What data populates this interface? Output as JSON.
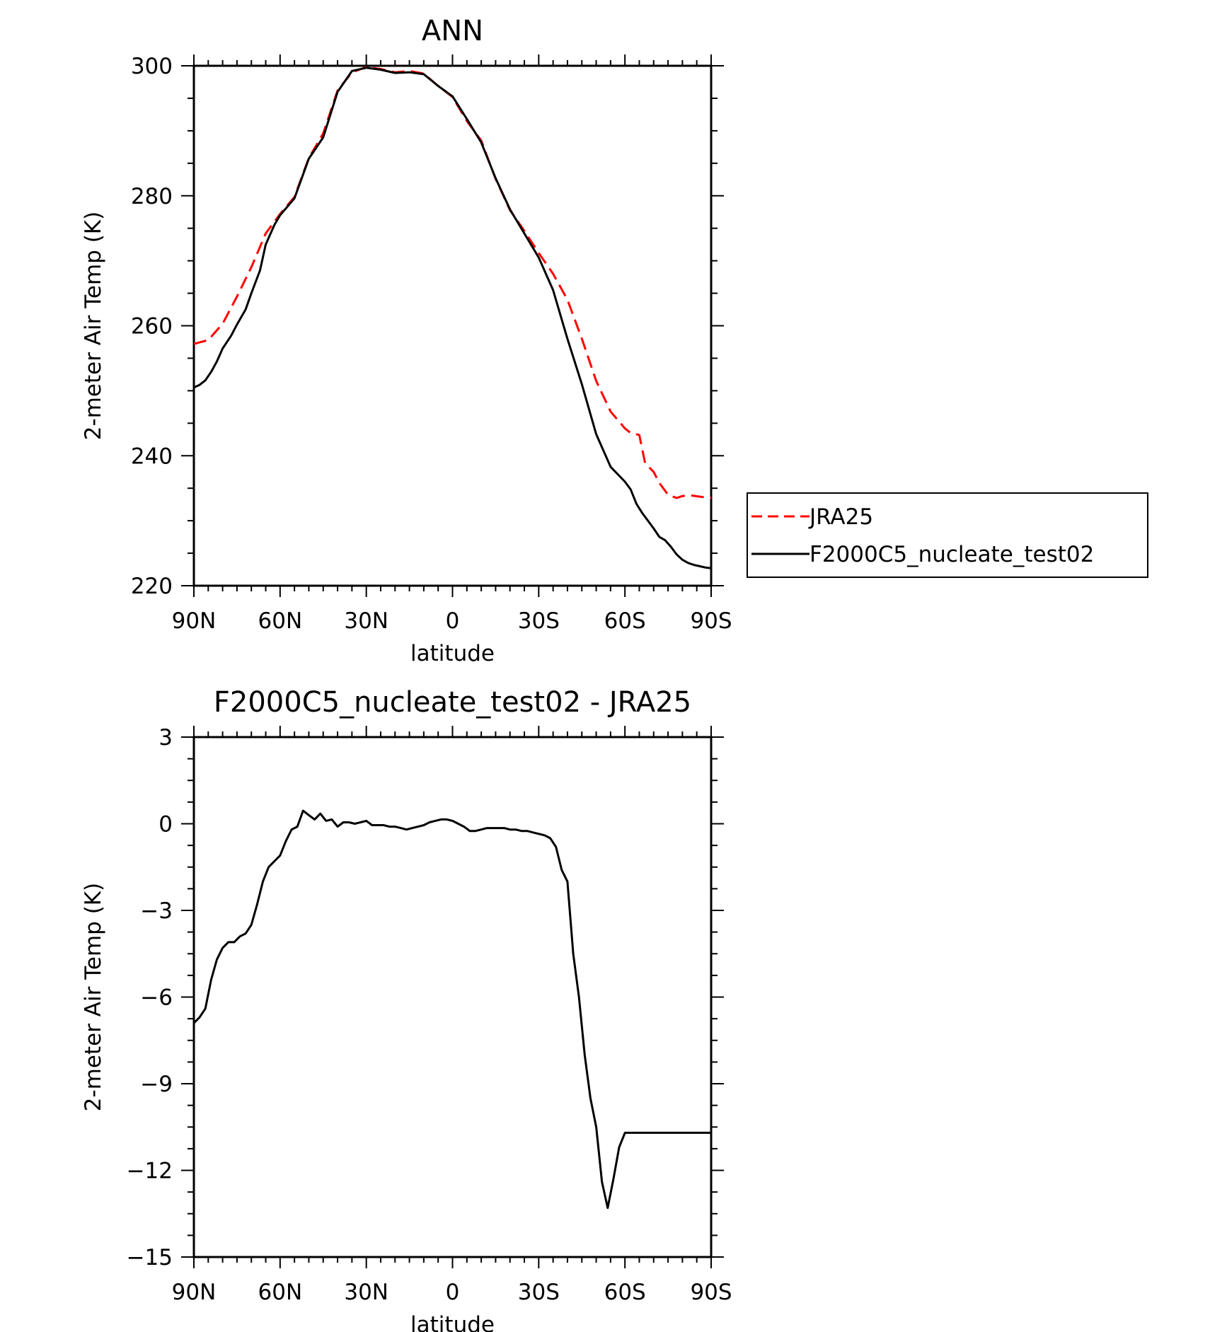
{
  "chart_data": [
    {
      "type": "line",
      "title": "ANN",
      "xlabel": "latitude",
      "ylabel": "2-meter Air Temp (K)",
      "xlim": [
        90,
        -90
      ],
      "ylim": [
        220,
        300
      ],
      "x_ticks": [
        90,
        60,
        30,
        0,
        -30,
        -60,
        -90
      ],
      "x_tick_labels": [
        "90N",
        "60N",
        "30N",
        "0",
        "30S",
        "60S",
        "90S"
      ],
      "y_ticks": [
        220,
        240,
        260,
        280,
        300
      ],
      "y_tick_labels": [
        "220",
        "240",
        "260",
        "280",
        "300"
      ],
      "legend_position": "right",
      "series": [
        {
          "name": "JRA25",
          "color": "#ff0000",
          "dash": "dashed",
          "x": [
            90,
            85,
            80,
            75,
            70,
            65,
            60,
            55,
            50,
            45,
            40,
            35,
            30,
            25,
            20,
            15,
            10,
            5,
            0,
            -5,
            -10,
            -15,
            -20,
            -25,
            -30,
            -35,
            -40,
            -45,
            -50,
            -55,
            -60,
            -62,
            -65,
            -67,
            -70,
            -72,
            -75,
            -78,
            -80,
            -83,
            -86,
            -88,
            -90
          ],
          "y": [
            257.2,
            257.8,
            260.3,
            264.5,
            269.0,
            274.2,
            277.2,
            279.8,
            285.8,
            289.6,
            296.2,
            299.0,
            299.8,
            299.5,
            299.0,
            299.2,
            298.8,
            296.9,
            295.2,
            291.5,
            288.5,
            282.6,
            277.8,
            274.6,
            271.2,
            268.0,
            264.0,
            258.0,
            251.5,
            246.8,
            244.2,
            243.5,
            243.2,
            238.9,
            237.5,
            235.8,
            234.0,
            233.5,
            233.8,
            233.9,
            233.7,
            233.6,
            233.5
          ]
        },
        {
          "name": "F2000C5_nucleate_test02",
          "color": "#000000",
          "dash": "solid",
          "x": [
            90,
            88,
            86,
            84,
            82,
            80,
            77,
            75,
            72,
            70,
            67,
            65,
            62,
            60,
            55,
            50,
            45,
            40,
            35,
            30,
            25,
            20,
            15,
            10,
            5,
            0,
            -5,
            -10,
            -15,
            -20,
            -25,
            -30,
            -35,
            -40,
            -45,
            -50,
            -55,
            -60,
            -62,
            -64,
            -66,
            -68,
            -70,
            -72,
            -74,
            -76,
            -78,
            -80,
            -82,
            -84,
            -86,
            -88,
            -90
          ],
          "y": [
            250.5,
            250.9,
            251.6,
            252.9,
            254.5,
            256.5,
            258.5,
            260.2,
            262.5,
            265.0,
            268.5,
            272.5,
            275.5,
            277.0,
            279.6,
            285.7,
            289.0,
            296.0,
            299.2,
            299.7,
            299.4,
            298.9,
            299.0,
            298.7,
            296.9,
            295.3,
            291.8,
            288.2,
            282.7,
            277.9,
            274.2,
            270.5,
            265.5,
            258.0,
            251.0,
            243.3,
            238.3,
            236.0,
            234.8,
            232.6,
            231.2,
            230.0,
            228.8,
            227.5,
            227.0,
            226.0,
            224.8,
            224.0,
            223.5,
            223.2,
            223.0,
            222.8,
            222.7
          ]
        }
      ]
    },
    {
      "type": "line",
      "title": "F2000C5_nucleate_test02 - JRA25",
      "xlabel": "latitude",
      "ylabel": "2-meter Air Temp (K)",
      "xlim": [
        90,
        -90
      ],
      "ylim": [
        -15,
        3
      ],
      "x_ticks": [
        90,
        60,
        30,
        0,
        -30,
        -60,
        -90
      ],
      "x_tick_labels": [
        "90N",
        "60N",
        "30N",
        "0",
        "30S",
        "60S",
        "90S"
      ],
      "y_ticks": [
        -15,
        -12,
        -9,
        -6,
        -3,
        0,
        3
      ],
      "y_tick_labels": [
        "−15",
        "−12",
        "−9",
        "−6",
        "−3",
        "0",
        "3"
      ],
      "series": [
        {
          "color": "#000000",
          "dash": "solid",
          "x": [
            90,
            88,
            86,
            84,
            82,
            80,
            78,
            76,
            74,
            72,
            70,
            68,
            66,
            64,
            62,
            60,
            58,
            56,
            54,
            52,
            50,
            48,
            46,
            44,
            42,
            40,
            38,
            36,
            34,
            32,
            30,
            28,
            26,
            24,
            22,
            20,
            18,
            16,
            14,
            12,
            10,
            8,
            6,
            4,
            2,
            0,
            -2,
            -4,
            -6,
            -8,
            -10,
            -12,
            -14,
            -16,
            -18,
            -20,
            -22,
            -24,
            -26,
            -28,
            -30,
            -32,
            -34,
            -36,
            -38,
            -40,
            -42,
            -44,
            -46,
            -48,
            -50,
            -52,
            -54,
            -56,
            -58,
            -60,
            -62,
            -64,
            -66,
            -68,
            -70,
            -72,
            -74,
            -76,
            -78,
            -80,
            -82,
            -84,
            -86,
            -88,
            -90
          ],
          "y": [
            -6.9,
            -6.7,
            -6.4,
            -5.4,
            -4.7,
            -4.3,
            -4.1,
            -4.1,
            -3.9,
            -3.8,
            -3.5,
            -2.8,
            -2.0,
            -1.5,
            -1.3,
            -1.1,
            -0.6,
            -0.2,
            -0.1,
            0.45,
            0.3,
            0.15,
            0.35,
            0.1,
            0.15,
            -0.1,
            0.05,
            0.05,
            0.0,
            0.05,
            0.1,
            -0.05,
            -0.05,
            -0.05,
            -0.1,
            -0.1,
            -0.15,
            -0.2,
            -0.15,
            -0.1,
            -0.05,
            0.05,
            0.1,
            0.15,
            0.15,
            0.1,
            0.0,
            -0.1,
            -0.25,
            -0.25,
            -0.2,
            -0.15,
            -0.15,
            -0.15,
            -0.15,
            -0.2,
            -0.2,
            -0.25,
            -0.25,
            -0.3,
            -0.35,
            -0.4,
            -0.5,
            -0.8,
            -1.6,
            -2.0,
            -4.5,
            -6.0,
            -8.0,
            -9.5,
            -10.5,
            -12.4,
            -13.3,
            -12.3,
            -11.2,
            -10.7,
            -10.7,
            -10.7,
            -10.7,
            -10.7,
            -10.7,
            -10.7,
            -10.7,
            -10.7,
            -10.7,
            -10.7,
            -10.7,
            -10.7,
            -10.7,
            -10.7,
            -10.7
          ]
        }
      ]
    }
  ]
}
